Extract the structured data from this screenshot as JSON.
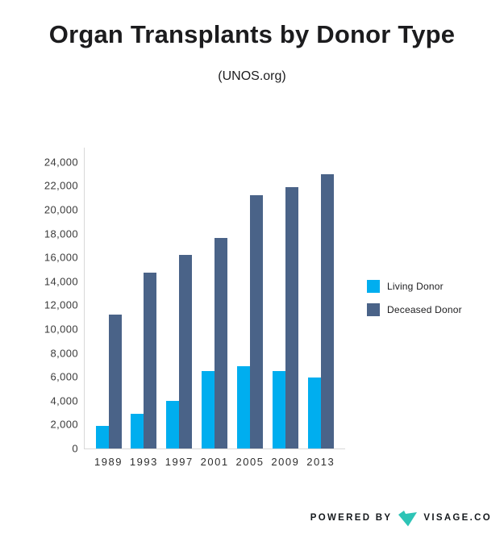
{
  "chart_data": {
    "type": "bar",
    "title": "Organ Transplants by Donor Type",
    "subtitle": "(UNOS.org)",
    "categories": [
      "1989",
      "1993",
      "1997",
      "2001",
      "2005",
      "2009",
      "2013"
    ],
    "series": [
      {
        "name": "Living Donor",
        "color": "#00AEEF",
        "values": [
          1900,
          2900,
          4000,
          6500,
          6900,
          6500,
          5950
        ]
      },
      {
        "name": "Deceased Donor",
        "color": "#4A6388",
        "values": [
          11200,
          14700,
          16200,
          17600,
          21200,
          21900,
          23000
        ]
      }
    ],
    "xlabel": "",
    "ylabel": "",
    "ylim": [
      0,
      24000
    ],
    "ytick_step": 2000,
    "yticks": [
      "0",
      "2,000",
      "4,000",
      "6,000",
      "8,000",
      "10,000",
      "12,000",
      "14,000",
      "16,000",
      "18,000",
      "20,000",
      "22,000",
      "24,000"
    ],
    "grid": false,
    "legend_position": "right"
  },
  "footer": {
    "powered_by": "POWERED BY",
    "brand": "VISAGE.CO",
    "logo_color": "#2EC4B6"
  }
}
